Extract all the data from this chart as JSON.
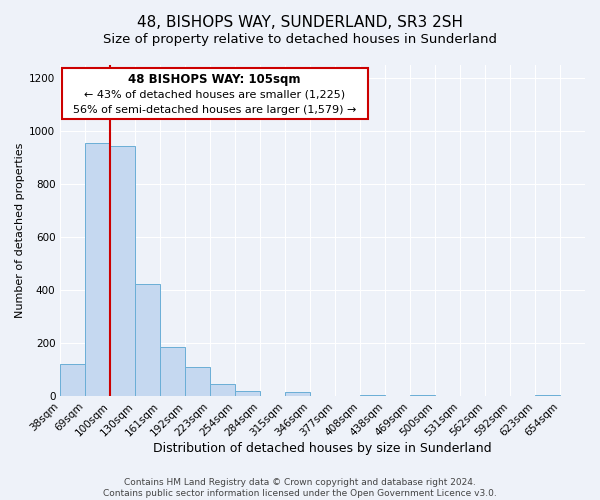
{
  "title": "48, BISHOPS WAY, SUNDERLAND, SR3 2SH",
  "subtitle": "Size of property relative to detached houses in Sunderland",
  "xlabel": "Distribution of detached houses by size in Sunderland",
  "ylabel": "Number of detached properties",
  "bin_labels": [
    "38sqm",
    "69sqm",
    "100sqm",
    "130sqm",
    "161sqm",
    "192sqm",
    "223sqm",
    "254sqm",
    "284sqm",
    "315sqm",
    "346sqm",
    "377sqm",
    "408sqm",
    "438sqm",
    "469sqm",
    "500sqm",
    "531sqm",
    "562sqm",
    "592sqm",
    "623sqm",
    "654sqm"
  ],
  "bar_values": [
    120,
    955,
    945,
    425,
    185,
    110,
    45,
    20,
    0,
    15,
    0,
    0,
    5,
    0,
    5,
    0,
    0,
    0,
    0,
    5,
    0
  ],
  "bar_color": "#c5d8f0",
  "bar_edge_color": "#6aaed6",
  "property_line_color": "#cc0000",
  "property_line_bin_index": 2,
  "ylim": [
    0,
    1250
  ],
  "yticks": [
    0,
    200,
    400,
    600,
    800,
    1000,
    1200
  ],
  "annotation_title": "48 BISHOPS WAY: 105sqm",
  "annotation_line1": "← 43% of detached houses are smaller (1,225)",
  "annotation_line2": "56% of semi-detached houses are larger (1,579) →",
  "annotation_box_color": "#ffffff",
  "annotation_box_edge": "#cc0000",
  "footer_line1": "Contains HM Land Registry data © Crown copyright and database right 2024.",
  "footer_line2": "Contains public sector information licensed under the Open Government Licence v3.0.",
  "bg_color": "#eef2f9",
  "grid_color": "#ffffff",
  "title_fontsize": 11,
  "subtitle_fontsize": 9.5,
  "xlabel_fontsize": 9,
  "ylabel_fontsize": 8,
  "tick_fontsize": 7.5,
  "footer_fontsize": 6.5
}
